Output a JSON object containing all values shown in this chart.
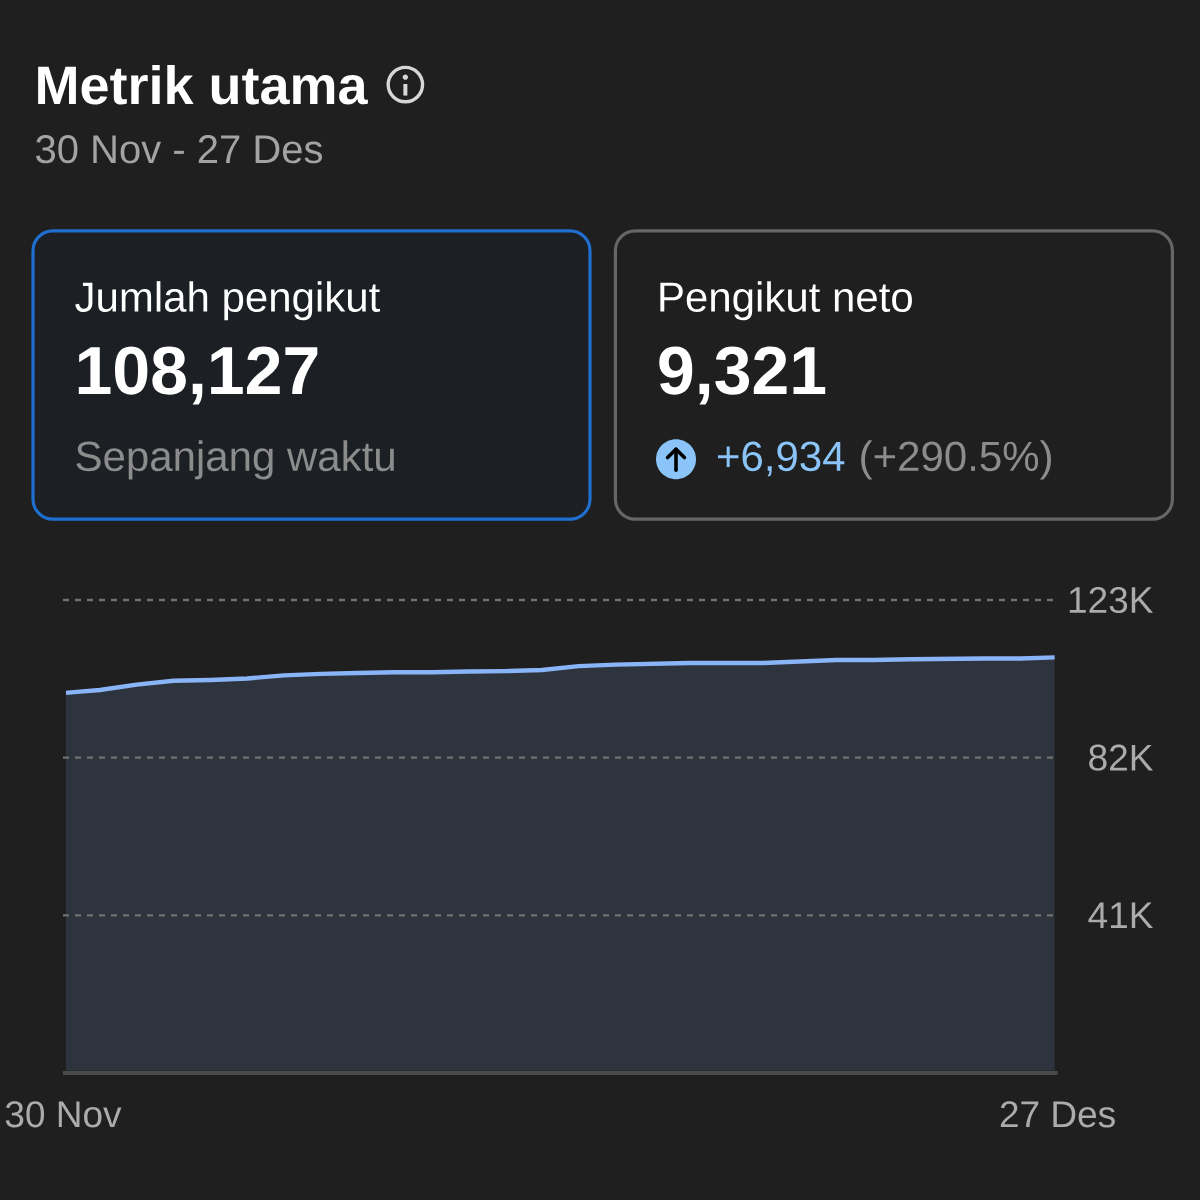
{
  "chart_data": [
    {
      "type": "other",
      "title": "Metrik utama",
      "subtitle": "30 Nov - 27 Des"
    },
    {
      "type": "other",
      "title": "Jumlah pengikut",
      "annotations": [
        "108,127",
        "Sepanjang waktu"
      ]
    },
    {
      "type": "other",
      "title": "Pengikut neto",
      "annotations": [
        "9,321",
        "+6,934",
        "(+290.5%)"
      ]
    },
    {
      "type": "area",
      "categories": [
        "30 Nov",
        null,
        null,
        null,
        null,
        null,
        null,
        null,
        null,
        null,
        null,
        null,
        null,
        null,
        null,
        null,
        null,
        null,
        null,
        null,
        null,
        null,
        null,
        null,
        null,
        null,
        null,
        "27 Des"
      ],
      "values": [
        98800,
        99600,
        101000,
        102000,
        102200,
        102600,
        103400,
        103800,
        104000,
        104200,
        104200,
        104400,
        104500,
        104800,
        105800,
        106200,
        106400,
        106600,
        106600,
        106600,
        107000,
        107400,
        107400,
        107600,
        107700,
        107800,
        107800,
        108100
      ],
      "color": "#2e343d",
      "ylim": [
        0,
        123000
      ],
      "yticks": [
        {
          "value": 41000,
          "label": "41K"
        },
        {
          "value": 82000,
          "label": "82K"
        },
        {
          "value": 123000,
          "label": "123K"
        }
      ],
      "grid": "y"
    }
  ]
}
